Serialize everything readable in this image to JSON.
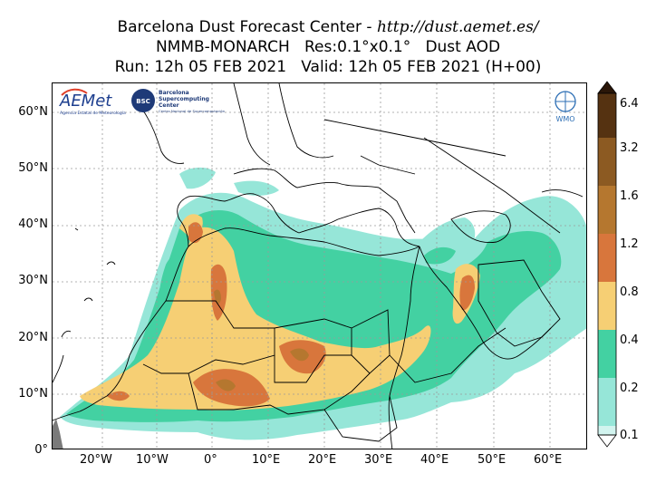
{
  "header": {
    "line1_prefix": "Barcelona Dust Forecast Center - ",
    "line1_url": "http://dust.aemet.es/",
    "line2": "NMMB-MONARCH   Res:0.1°x0.1°   Dust AOD",
    "line3": "Run: 12h 05 FEB 2021   Valid: 12h 05 FEB 2021 (H+00)"
  },
  "map": {
    "lat_labels": [
      "60°N",
      "50°N",
      "40°N",
      "30°N",
      "20°N",
      "10°N",
      "0°"
    ],
    "lon_labels": [
      "20°W",
      "10°W",
      "0°",
      "10°E",
      "20°E",
      "30°E",
      "40°E",
      "50°E",
      "60°E"
    ]
  },
  "logos": {
    "aemet": "AEMet",
    "aemet_sub": "Agencia Estatal de Meteorología",
    "bsc_badge": "BSC",
    "bsc_name_1": "Barcelona",
    "bsc_name_2": "Supercomputing",
    "bsc_name_3": "Center",
    "bsc_sub": "Centro Nacional de Supercomputación",
    "wmo": "WMO"
  },
  "colorbar": {
    "levels": [
      "6.4",
      "3.2",
      "1.6",
      "1.2",
      "0.8",
      "0.4",
      "0.2",
      "0.1"
    ],
    "colors": [
      "#2a1608",
      "#553211",
      "#8c5a22",
      "#b5772f",
      "#d8763c",
      "#f6cf74",
      "#43d1a2",
      "#96e6d8",
      "#d2f4ef"
    ]
  }
}
